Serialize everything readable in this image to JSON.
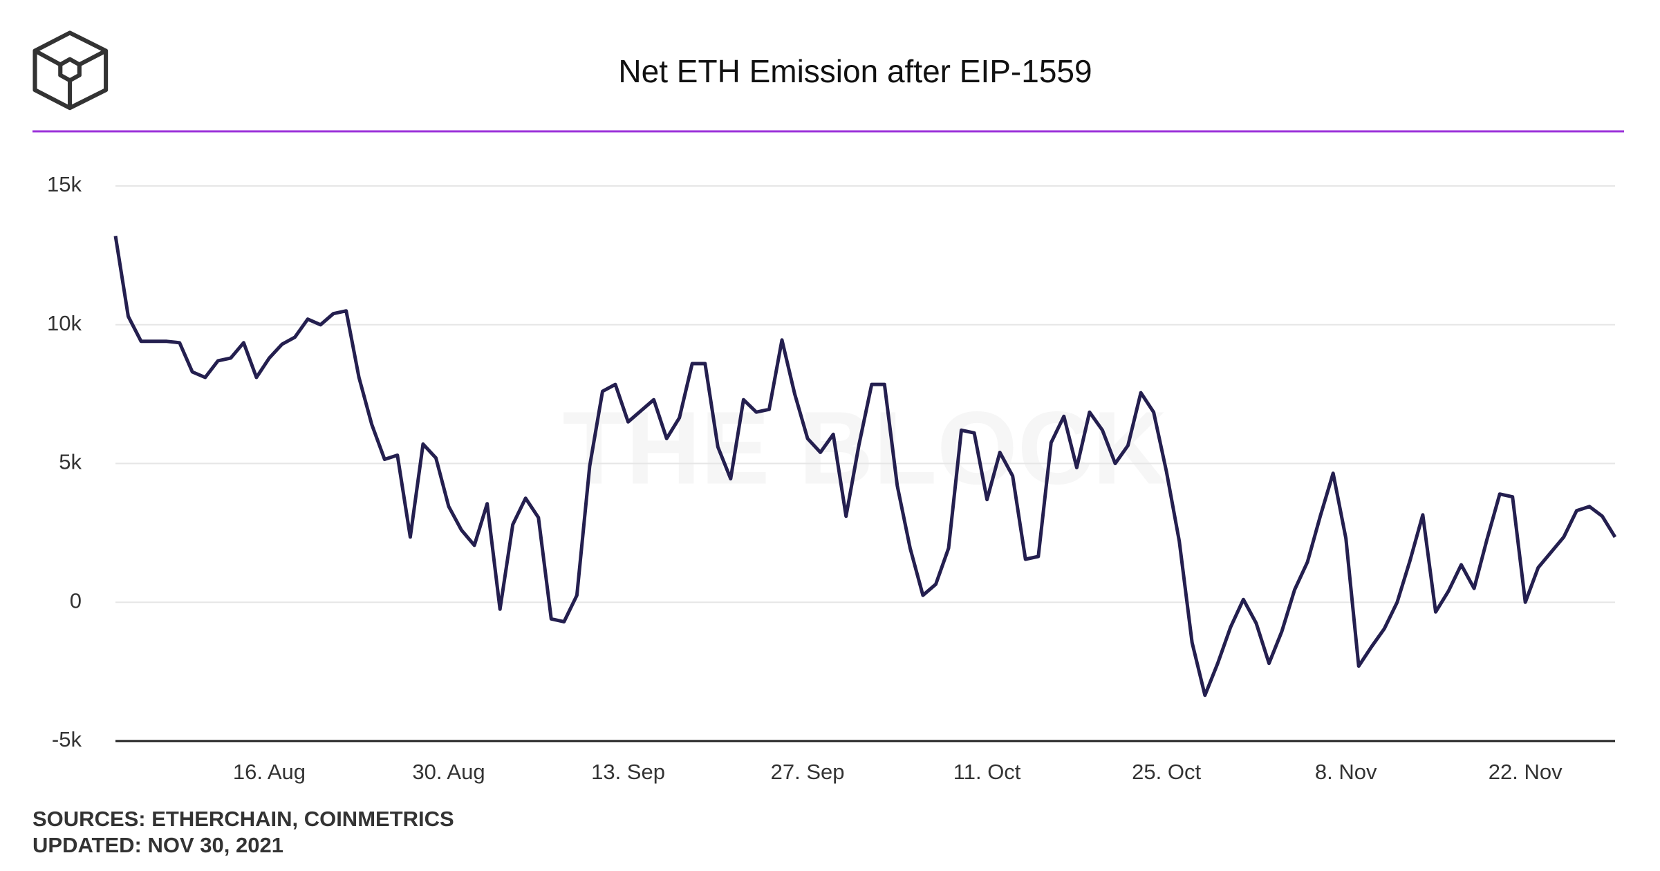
{
  "chart_data": {
    "type": "line",
    "title": "Net ETH Emission after EIP-1559",
    "watermark": "THE BLOCK",
    "sources": "SOURCES: ETHERCHAIN, COINMETRICS",
    "updated": "UPDATED: NOV 30, 2021",
    "categories": [
      null,
      null,
      null,
      null,
      null,
      null,
      null,
      null,
      null,
      null,
      null,
      null,
      "16. Aug",
      null,
      null,
      null,
      null,
      null,
      null,
      null,
      null,
      null,
      null,
      null,
      null,
      null,
      "30. Aug",
      null,
      null,
      null,
      null,
      null,
      null,
      null,
      null,
      null,
      null,
      null,
      null,
      null,
      "13. Sep",
      null,
      null,
      null,
      null,
      null,
      null,
      null,
      null,
      null,
      null,
      null,
      null,
      null,
      "27. Sep",
      null,
      null,
      null,
      null,
      null,
      null,
      null,
      null,
      null,
      null,
      null,
      null,
      null,
      "11. Oct",
      null,
      null,
      null,
      null,
      null,
      null,
      null,
      null,
      null,
      null,
      null,
      null,
      null,
      "25. Oct",
      null,
      null,
      null,
      null,
      null,
      null,
      null,
      null,
      null,
      null,
      null,
      null,
      null,
      "8. Nov",
      null,
      null,
      null,
      null,
      null,
      null,
      null,
      null,
      null,
      null,
      null,
      null,
      null,
      "22. Nov",
      null,
      null,
      null,
      null,
      null,
      null,
      null
    ],
    "series": [
      {
        "name": "Net ETH Emission",
        "color": "#241f4f",
        "values": [
          13200,
          10300,
          9400,
          9400,
          9400,
          9350,
          8300,
          8100,
          8700,
          8800,
          9350,
          8100,
          8800,
          9300,
          9550,
          10200,
          10000,
          10400,
          10500,
          8100,
          6400,
          5150,
          5300,
          2350,
          5700,
          5200,
          3450,
          2600,
          2050,
          3550,
          -250,
          2800,
          3750,
          3050,
          -600,
          -700,
          250,
          4900,
          7600,
          7850,
          6500,
          6900,
          7300,
          5900,
          6650,
          8600,
          8600,
          5600,
          4450,
          7300,
          6850,
          6950,
          9450,
          7500,
          5900,
          5400,
          6050,
          3100,
          5650,
          7850,
          7850,
          4200,
          1950,
          250,
          650,
          1950,
          6200,
          6100,
          3700,
          5400,
          4550,
          1550,
          1650,
          5750,
          6700,
          4850,
          6850,
          6200,
          5000,
          5650,
          7550,
          6850,
          4700,
          2200,
          -1450,
          -3350,
          -2200,
          -900,
          100,
          -750,
          -2200,
          -1050,
          450,
          1450,
          3100,
          4650,
          2300,
          -2300,
          -1600,
          -950,
          0,
          1500,
          3150,
          -350,
          400,
          1350,
          500,
          2250,
          3900,
          3800,
          0,
          1250,
          1800,
          2350,
          3300,
          3450,
          3100,
          2350
        ]
      }
    ],
    "ylim": [
      -5000,
      15000
    ],
    "yticks": [
      {
        "value": -5000,
        "label": "-5k"
      },
      0,
      {
        "value": 5000,
        "label": "5k"
      },
      {
        "value": 10000,
        "label": "10k"
      },
      {
        "value": 15000,
        "label": "15k"
      }
    ],
    "grid": true
  }
}
